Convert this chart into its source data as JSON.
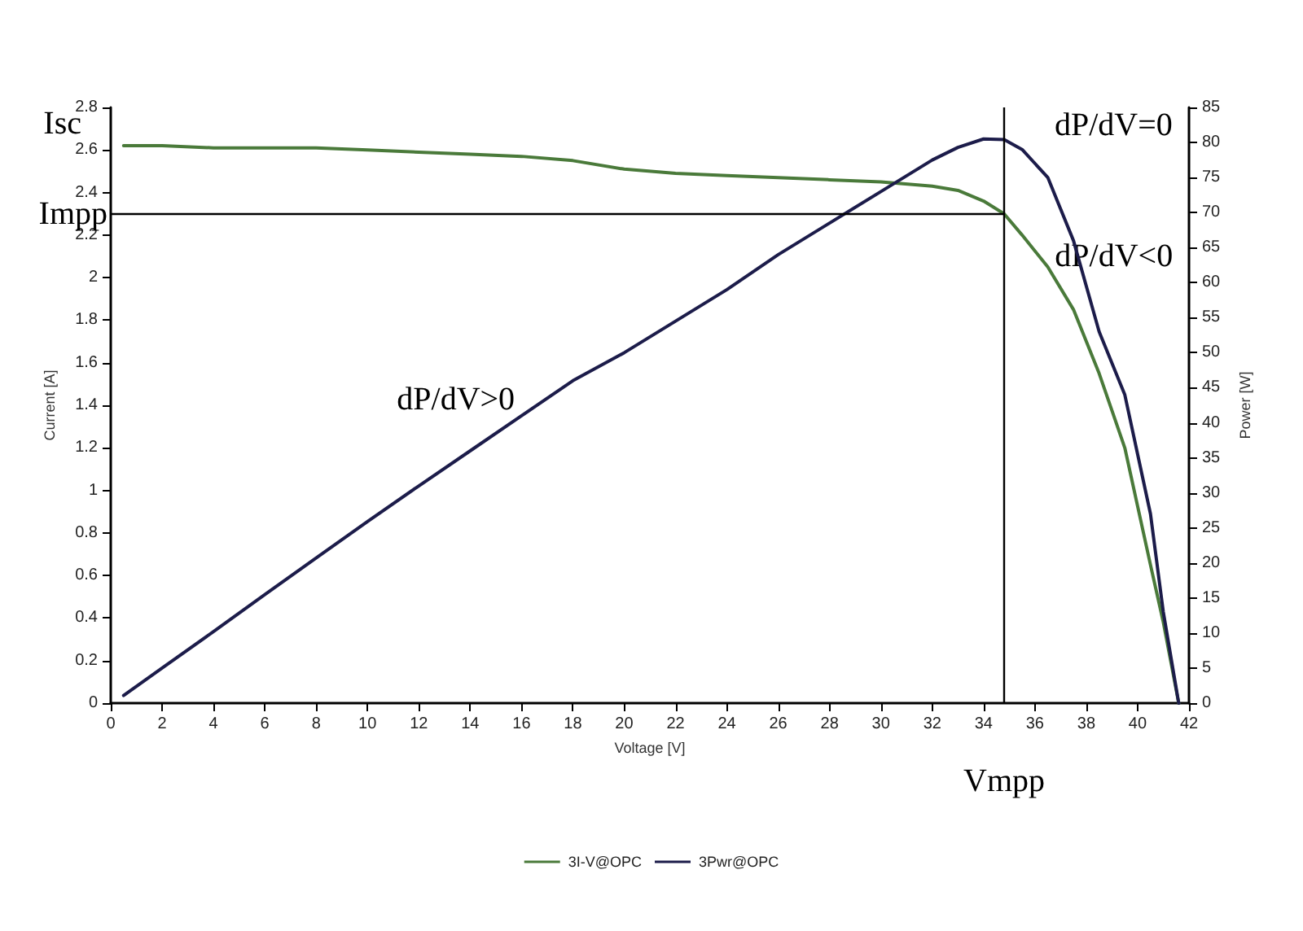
{
  "chart_data": {
    "type": "line",
    "xlabel": "Voltage [V]",
    "ylabel": "Current [A]",
    "y2label": "Power [W]",
    "x": [
      0.5,
      2,
      4,
      6,
      8,
      10,
      12,
      14,
      16,
      18,
      20,
      22,
      24,
      26,
      28,
      30,
      32,
      33,
      34,
      34.8,
      35.5,
      36.5,
      37.5,
      38.5,
      39.5,
      40.5,
      41,
      41.6
    ],
    "series": [
      {
        "name": "3I-V@OPC",
        "color": "#4a7a3a",
        "values": [
          2.62,
          2.62,
          2.61,
          2.61,
          2.61,
          2.6,
          2.59,
          2.58,
          2.57,
          2.55,
          2.51,
          2.49,
          2.48,
          2.47,
          2.46,
          2.45,
          2.43,
          2.41,
          2.36,
          2.3,
          2.2,
          2.05,
          1.85,
          1.55,
          1.2,
          0.65,
          0.38,
          0
        ]
      },
      {
        "name": "3Pwr@OPC",
        "color": "#1c1c4a",
        "axis": "y2",
        "values": [
          1.1,
          5,
          10.2,
          15.5,
          20.7,
          25.9,
          31,
          36,
          41,
          46,
          50,
          54.5,
          59,
          64,
          68.5,
          73,
          77.5,
          79.3,
          80.5,
          80.4,
          79,
          75,
          66,
          53,
          44,
          27,
          13,
          0
        ]
      }
    ],
    "xlim": [
      0,
      42
    ],
    "xticks": [
      0,
      2,
      4,
      6,
      8,
      10,
      12,
      14,
      16,
      18,
      20,
      22,
      24,
      26,
      28,
      30,
      32,
      34,
      36,
      38,
      40,
      42
    ],
    "ylim": [
      0,
      2.8
    ],
    "yticks": [
      0,
      0.2,
      0.4,
      0.6,
      0.8,
      1,
      1.2,
      1.4,
      1.6,
      1.8,
      2,
      2.2,
      2.4,
      2.6,
      2.8
    ],
    "y2lim": [
      0,
      85
    ],
    "y2ticks": [
      0,
      5,
      10,
      15,
      20,
      25,
      30,
      35,
      40,
      45,
      50,
      55,
      60,
      65,
      70,
      75,
      80,
      85
    ],
    "ref_lines": [
      {
        "axis": "y",
        "value": 2.3,
        "label": "Impp",
        "color": "#000000"
      },
      {
        "axis": "x",
        "value": 34.8,
        "label": "Vmpp",
        "color": "#000000"
      }
    ],
    "annotations": [
      "Isc",
      "dP/dV>0",
      "dP/dV=0",
      "dP/dV<0"
    ],
    "grid": false,
    "legend": "bottom",
    "marker": "none",
    "line_style": "solid"
  }
}
